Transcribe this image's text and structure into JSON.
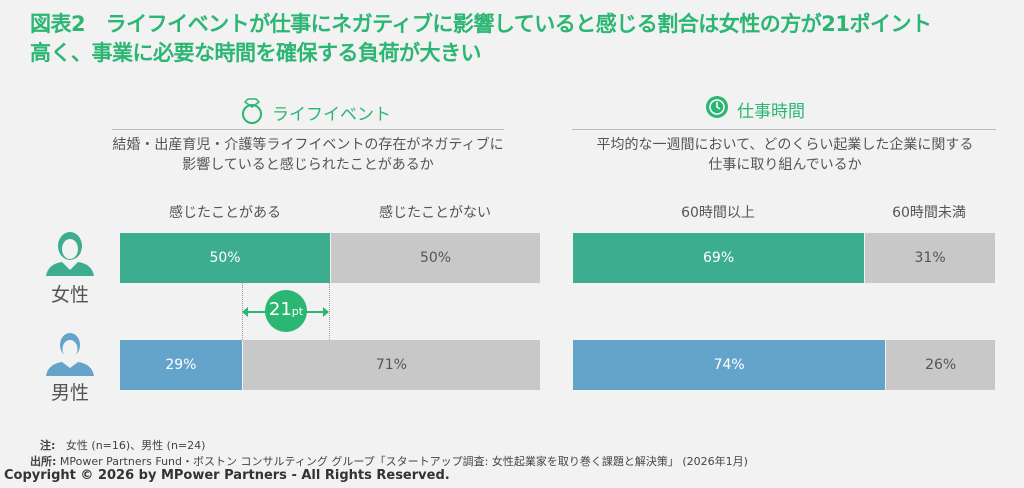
{
  "title": {
    "line1": "図表2　ライフイベントが仕事にネガティブに影響していると感じる割合は女性の方が21ポイント",
    "line2": "高く、事業に必要な時間を確保する負荷が大きい"
  },
  "colors": {
    "female": "#3dad8f",
    "male": "#64a4cb",
    "rest": "#c8c8c8",
    "accent": "#2bb673"
  },
  "groups": {
    "female": "女性",
    "male": "男性"
  },
  "diff_badge": {
    "value": "21",
    "unit": "pt"
  },
  "chart_data": [
    {
      "type": "bar",
      "stacked": true,
      "orientation": "horizontal",
      "title": "ライフイベント",
      "icon": "ring-icon",
      "question_line1": "結婚・出産育児・介護等ライフイベントの存在がネガティブに",
      "question_line2": "影響していると感じられたことがあるか",
      "series_labels": [
        "感じたことがある",
        "感じたことがない"
      ],
      "categories": [
        "女性",
        "男性"
      ],
      "values": {
        "female": [
          50,
          50
        ],
        "male": [
          29,
          71
        ]
      },
      "data_labels": {
        "female": [
          "50%",
          "50%"
        ],
        "male": [
          "29%",
          "71%"
        ]
      }
    },
    {
      "type": "bar",
      "stacked": true,
      "orientation": "horizontal",
      "title": "仕事時間",
      "icon": "clock-icon",
      "question_line1": "平均的な一週間において、どのくらい起業した企業に関する",
      "question_line2": "仕事に取り組んでいるか",
      "series_labels": [
        "60時間以上",
        "60時間未満"
      ],
      "categories": [
        "女性",
        "男性"
      ],
      "values": {
        "female": [
          69,
          31
        ],
        "male": [
          74,
          26
        ]
      },
      "data_labels": {
        "female": [
          "69%",
          "31%"
        ],
        "male": [
          "74%",
          "26%"
        ]
      }
    }
  ],
  "footer": {
    "note_label": "注:",
    "note_text": "女性 (n=16)、男性 (n=24)",
    "source_label": "出所:",
    "source_text": "MPower Partners Fund・ボストン コンサルティング グループ「スタートアップ調査: 女性起業家を取り巻く課題と解決策」 (2026年1月)",
    "copyright": "Copyright © 2026 by MPower Partners - All Rights Reserved."
  }
}
